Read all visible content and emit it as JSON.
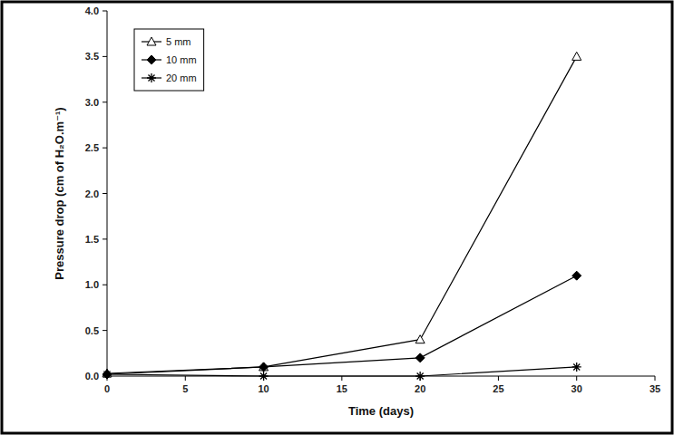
{
  "chart_data": {
    "type": "line",
    "x_label": "Time (days)",
    "y_label": "Pressure drop (cm of H₂O.m⁻¹)",
    "x": [
      0,
      10,
      20,
      30
    ],
    "series": [
      {
        "name": "5 mm",
        "color": "#000000",
        "marker": "open-triangle",
        "values": [
          0.03,
          0.1,
          0.4,
          3.5
        ]
      },
      {
        "name": "10 mm",
        "color": "#000000",
        "marker": "diamond",
        "values": [
          0.02,
          0.1,
          0.2,
          1.1
        ]
      },
      {
        "name": "20 mm",
        "color": "#000000",
        "marker": "asterisk",
        "values": [
          0.02,
          0.0,
          0.0,
          0.1
        ]
      }
    ],
    "xlim": [
      0,
      35
    ],
    "xticks": [
      0,
      5,
      10,
      15,
      20,
      25,
      30,
      35
    ],
    "ylim": [
      0,
      4
    ],
    "yticks": [
      {
        "value": 0,
        "label": "0.0"
      },
      0.5,
      {
        "value": 1,
        "label": "1.0"
      },
      1.5,
      {
        "value": 2,
        "label": "2.0"
      },
      2.5,
      {
        "value": 3,
        "label": "3.0"
      },
      3.5,
      {
        "value": 4,
        "label": "4.0"
      }
    ],
    "grid": false,
    "legend": "top-left"
  }
}
